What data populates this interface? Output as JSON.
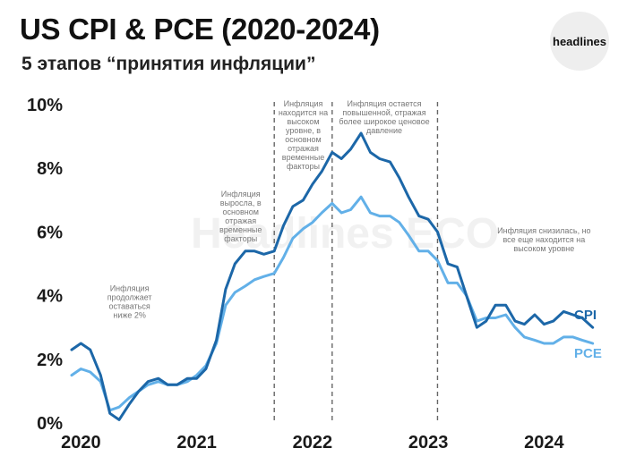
{
  "header": {
    "title": "US CPI & PCE (2020-2024)",
    "subtitle": "5 этапов “принятия инфляции”",
    "logo_text": "headlines"
  },
  "watermark": "Headlines ECO",
  "chart_data": {
    "type": "line",
    "title": "US CPI & PCE (2020-2024)",
    "subtitle": "5 этапов “принятия инфляции”",
    "xlabel": "",
    "ylabel": "",
    "ylim": [
      0,
      10
    ],
    "yticks": [
      0,
      2,
      4,
      6,
      8,
      10
    ],
    "ytick_labels": [
      "0%",
      "2%",
      "4%",
      "6%",
      "8%",
      "10%"
    ],
    "xticks": [
      2020,
      2021,
      2022,
      2023,
      2024
    ],
    "xtick_labels": [
      "2020",
      "2021",
      "2022",
      "2023",
      "2024"
    ],
    "xlim": [
      2019.92,
      2024.5
    ],
    "grid": false,
    "phase_dividers": [
      2021.67,
      2022.17,
      2023.08
    ],
    "annotations": [
      {
        "text": "Инфляция продолжает оставаться ниже 2%",
        "x": 2020.42,
        "y": 4.15,
        "lines": [
          "Инфляция",
          "продолжает",
          "оставаться",
          "ниже 2%"
        ]
      },
      {
        "text": "Инфляция выросла, в основном отражая временные факторы",
        "x": 2021.38,
        "y": 7.1,
        "lines": [
          "Инфляция",
          "выросла, в",
          "основном",
          "отражая",
          "временные",
          "факторы"
        ]
      },
      {
        "text": "Инфляция находится на высоком уровне, в основном отражая временные факторы",
        "x": 2021.92,
        "y": 9.95,
        "lines": [
          "Инфляция",
          "находится на",
          "высоком",
          "уровне, в",
          "основном",
          "отражая",
          "временные",
          "факторы"
        ]
      },
      {
        "text": "Инфляция остается повышенной, отражая более широкое ценовое давление",
        "x": 2022.62,
        "y": 9.95,
        "lines": [
          "Инфляция остается",
          "повышенной, отражая",
          "более широкое ценовое",
          "давление"
        ]
      },
      {
        "text": "Инфляция снизилась, но все еще находится на высоком уровне",
        "x": 2024.0,
        "y": 5.95,
        "lines": [
          "Инфляция снизилась, но",
          "все еще находится на",
          "высоком уровне"
        ]
      }
    ],
    "series": [
      {
        "name": "CPI",
        "color": "#1c67a8",
        "x": [
          2019.92,
          2020.0,
          2020.08,
          2020.17,
          2020.25,
          2020.33,
          2020.42,
          2020.5,
          2020.58,
          2020.67,
          2020.75,
          2020.83,
          2020.92,
          2021.0,
          2021.08,
          2021.17,
          2021.25,
          2021.33,
          2021.42,
          2021.5,
          2021.58,
          2021.67,
          2021.75,
          2021.83,
          2021.92,
          2022.0,
          2022.08,
          2022.17,
          2022.25,
          2022.33,
          2022.42,
          2022.5,
          2022.58,
          2022.67,
          2022.75,
          2022.83,
          2022.92,
          2023.0,
          2023.08,
          2023.17,
          2023.25,
          2023.33,
          2023.42,
          2023.5,
          2023.58,
          2023.67,
          2023.75,
          2023.83,
          2023.92,
          2024.0,
          2024.08,
          2024.17,
          2024.25,
          2024.33,
          2024.42
        ],
        "values": [
          2.3,
          2.5,
          2.3,
          1.5,
          0.3,
          0.1,
          0.6,
          1.0,
          1.3,
          1.4,
          1.2,
          1.2,
          1.4,
          1.4,
          1.7,
          2.6,
          4.2,
          5.0,
          5.4,
          5.4,
          5.3,
          5.4,
          6.2,
          6.8,
          7.0,
          7.5,
          7.9,
          8.5,
          8.3,
          8.6,
          9.1,
          8.5,
          8.3,
          8.2,
          7.7,
          7.1,
          6.5,
          6.4,
          6.0,
          5.0,
          4.9,
          4.0,
          3.0,
          3.2,
          3.7,
          3.7,
          3.2,
          3.1,
          3.4,
          3.1,
          3.2,
          3.5,
          3.4,
          3.3,
          3.0
        ]
      },
      {
        "name": "PCE",
        "color": "#62b0e8",
        "x": [
          2019.92,
          2020.0,
          2020.08,
          2020.17,
          2020.25,
          2020.33,
          2020.42,
          2020.5,
          2020.58,
          2020.67,
          2020.75,
          2020.83,
          2020.92,
          2021.0,
          2021.08,
          2021.17,
          2021.25,
          2021.33,
          2021.42,
          2021.5,
          2021.58,
          2021.67,
          2021.75,
          2021.83,
          2021.92,
          2022.0,
          2022.08,
          2022.17,
          2022.25,
          2022.33,
          2022.42,
          2022.5,
          2022.58,
          2022.67,
          2022.75,
          2022.83,
          2022.92,
          2023.0,
          2023.08,
          2023.17,
          2023.25,
          2023.33,
          2023.42,
          2023.5,
          2023.58,
          2023.67,
          2023.75,
          2023.83,
          2023.92,
          2024.0,
          2024.08,
          2024.17,
          2024.25,
          2024.33,
          2024.42
        ],
        "values": [
          1.5,
          1.7,
          1.6,
          1.3,
          0.4,
          0.5,
          0.8,
          1.0,
          1.2,
          1.3,
          1.2,
          1.2,
          1.3,
          1.5,
          1.8,
          2.5,
          3.7,
          4.1,
          4.3,
          4.5,
          4.6,
          4.7,
          5.2,
          5.8,
          6.1,
          6.3,
          6.6,
          6.9,
          6.6,
          6.7,
          7.1,
          6.6,
          6.5,
          6.5,
          6.3,
          5.9,
          5.4,
          5.4,
          5.1,
          4.4,
          4.4,
          4.0,
          3.2,
          3.3,
          3.3,
          3.4,
          3.0,
          2.7,
          2.6,
          2.5,
          2.5,
          2.7,
          2.7,
          2.6,
          2.5
        ]
      }
    ]
  }
}
